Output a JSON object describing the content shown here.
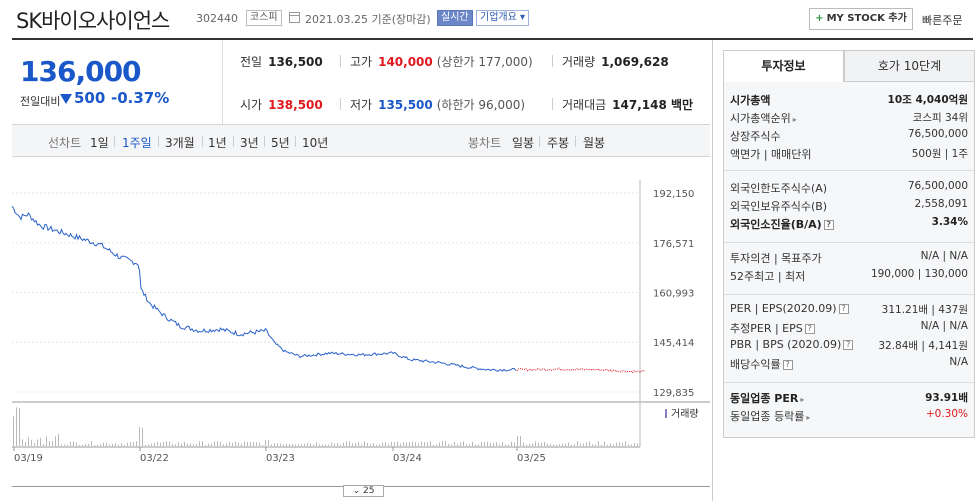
{
  "header": {
    "company": "SK바이오사이언스",
    "code": "302440",
    "market": "코스피",
    "date_text": "2021.03.25 기준(장마감)",
    "live_badge": "실시간",
    "corp_badge": "기업개요",
    "mystock_label": "MY STOCK 추가",
    "quick_order": "빠른주문"
  },
  "price": {
    "current": "136,000",
    "change_label": "전일대비",
    "change": "500",
    "change_pct": "-0.37%"
  },
  "quote": {
    "prev_label": "전일",
    "prev": "136,500",
    "high_label": "고가",
    "high": "140,000",
    "upper_limit": "(상한가 177,000)",
    "volume_label": "거래량",
    "volume": "1,069,628",
    "open_label": "시가",
    "open": "138,500",
    "low_label": "저가",
    "low": "135,500",
    "lower_limit": "(하한가 96,000)",
    "amount_label": "거래대금",
    "amount": "147,148 백만"
  },
  "chart_tabs": {
    "line_header": "선차트",
    "line_periods": [
      "1일",
      "1주일",
      "3개월",
      "1년",
      "3년",
      "5년",
      "10년"
    ],
    "active": "1주일",
    "candle_header": "봉차트",
    "candle_periods": [
      "일봉",
      "주봉",
      "월봉"
    ]
  },
  "chart_data": {
    "type": "line",
    "x_ticks": [
      "03/19",
      "03/22",
      "03/23",
      "03/24",
      "03/25"
    ],
    "y_ticks": [
      192150,
      176571,
      160993,
      145414,
      129835
    ],
    "ylim": [
      129835,
      192150
    ],
    "volume_legend": "거래량",
    "series_color": "#2a62c9",
    "current_day_color": "#e0191f"
  },
  "expand_label": "⌄ 25",
  "right_panel": {
    "tabs": [
      "투자정보",
      "호가 10단계"
    ],
    "rows": [
      {
        "label": "시가총액",
        "value": "10조 4,040억원",
        "bold": true
      },
      {
        "label": "시가총액순위",
        "value": "코스피 34위",
        "arrow": true
      },
      {
        "label": "상장주식수",
        "value": "76,500,000"
      },
      {
        "label": "액면가 | 매매단위",
        "value": "500원 | 1주"
      },
      {
        "label": "외국인한도주식수(A)",
        "value": "76,500,000"
      },
      {
        "label": "외국인보유주식수(B)",
        "value": "2,558,091"
      },
      {
        "label": "외국인소진율(B/A)",
        "value": "3.34%",
        "bold": true,
        "help": true
      },
      {
        "label": "투자의견 | 목표주가",
        "value": "N/A | N/A"
      },
      {
        "label": "52주최고 | 최저",
        "value": "190,000 | 130,000"
      },
      {
        "label": "PER | EPS(2020.09)",
        "value": "311.21배 | 437원",
        "help": true
      },
      {
        "label": "추정PER | EPS",
        "value": "N/A | N/A",
        "help": true
      },
      {
        "label": "PBR | BPS (2020.09)",
        "value": "32.84배 | 4,141원",
        "help": true
      },
      {
        "label": "배당수익률",
        "value": "N/A",
        "help": true
      },
      {
        "label": "동일업종 PER",
        "value": "93.91배",
        "bold": true,
        "arrow": true
      },
      {
        "label": "동일업종 등락률",
        "value": "+0.30%",
        "arrow": true,
        "up": true
      }
    ]
  }
}
